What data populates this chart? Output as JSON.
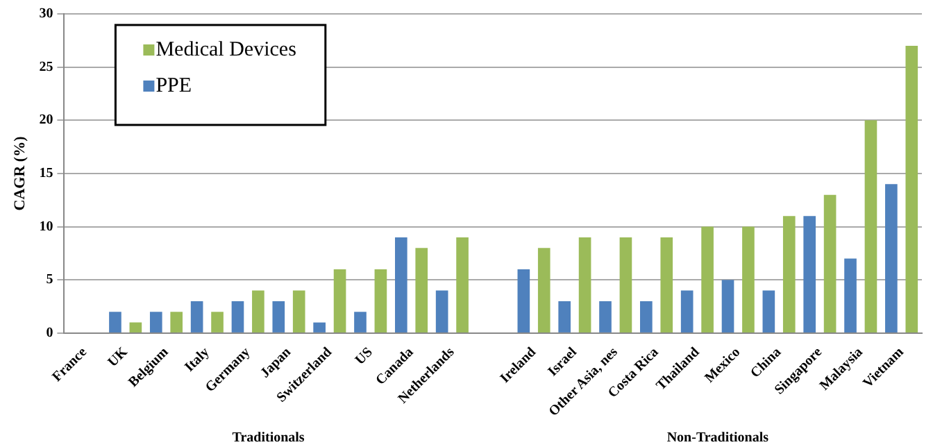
{
  "chart_data": {
    "type": "bar",
    "ylabel": "CAGR (%)",
    "categories": [
      "France",
      "UK",
      "Belgium",
      "Italy",
      "Germany",
      "Japan",
      "Switzerland",
      "US",
      "Canada",
      "Netherlands",
      null,
      "Ireland",
      "Israel",
      "Other Asia, nes",
      "Costa Rica",
      "Thailand",
      "Mexico",
      "China",
      "Singapore",
      "Malaysia",
      "Vietnam"
    ],
    "series": [
      {
        "name": "PPE",
        "color": "#4f81bd",
        "values": [
          null,
          2,
          2,
          3,
          3,
          3,
          1,
          2,
          9,
          4,
          null,
          6,
          3,
          3,
          3,
          4,
          5,
          4,
          11,
          7,
          14
        ]
      },
      {
        "name": "Medical Devices",
        "color": "#9bbb59",
        "values": [
          null,
          1,
          2,
          2,
          4,
          4,
          6,
          6,
          8,
          9,
          null,
          8,
          9,
          9,
          9,
          10,
          10,
          11,
          13,
          20,
          27
        ]
      }
    ],
    "ylim": [
      0,
      30
    ],
    "yticks": [
      0,
      5,
      10,
      15,
      20,
      25,
      30
    ],
    "grid": "y",
    "legend": "top left",
    "annotations": [
      "Traditionals",
      "Non-Traditionals"
    ]
  }
}
